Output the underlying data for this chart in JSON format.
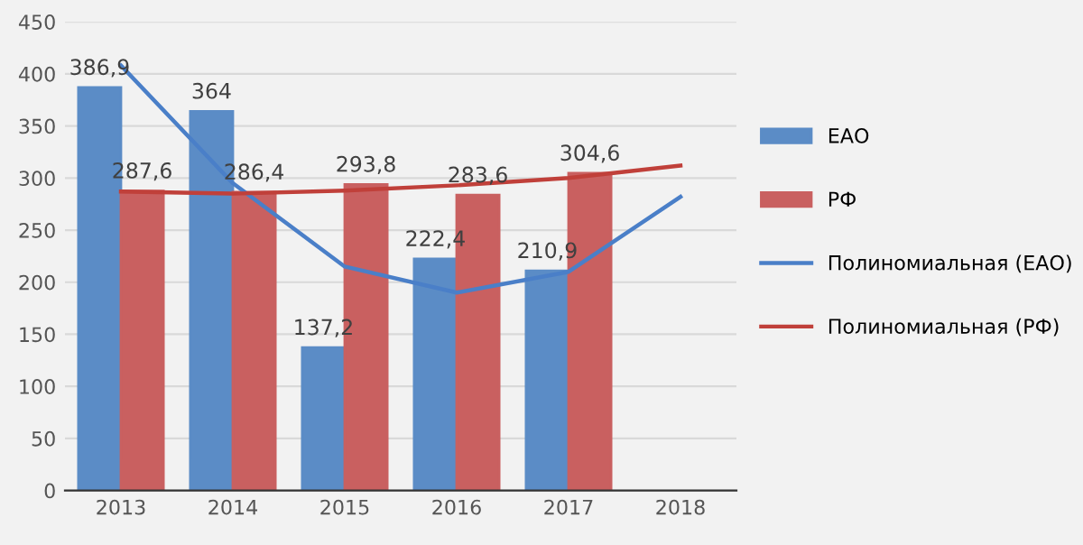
{
  "chart_data": {
    "type": "bar",
    "categories": [
      "2013",
      "2014",
      "2015",
      "2016",
      "2017",
      "2018"
    ],
    "series": [
      {
        "name": "ЕАО",
        "color": "#5b8cc6",
        "values": [
          386.9,
          364,
          137.2,
          222.4,
          210.9,
          null
        ],
        "value_labels": [
          "386,9",
          "364",
          "137,2",
          "222,4",
          "210,9",
          null
        ]
      },
      {
        "name": "РФ",
        "color": "#c96060",
        "values": [
          287.6,
          286.4,
          293.8,
          283.6,
          304.6,
          null
        ],
        "value_labels": [
          "287,6",
          "286,4",
          "293,8",
          "283,6",
          "304,6",
          null
        ]
      },
      {
        "name": "Полиномиальная (ЕАО)",
        "type": "line",
        "color": "#4a7fc8",
        "values": [
          408,
          295,
          215,
          190,
          210,
          282
        ]
      },
      {
        "name": "Полиномиальная (РФ)",
        "type": "line",
        "color": "#c0403a",
        "values": [
          287,
          285,
          288,
          293,
          300,
          312
        ]
      }
    ],
    "ylim": [
      0,
      450
    ],
    "yticks": [
      0,
      50,
      100,
      150,
      200,
      250,
      300,
      350,
      400,
      450
    ],
    "grid": "y",
    "legend": "right"
  }
}
